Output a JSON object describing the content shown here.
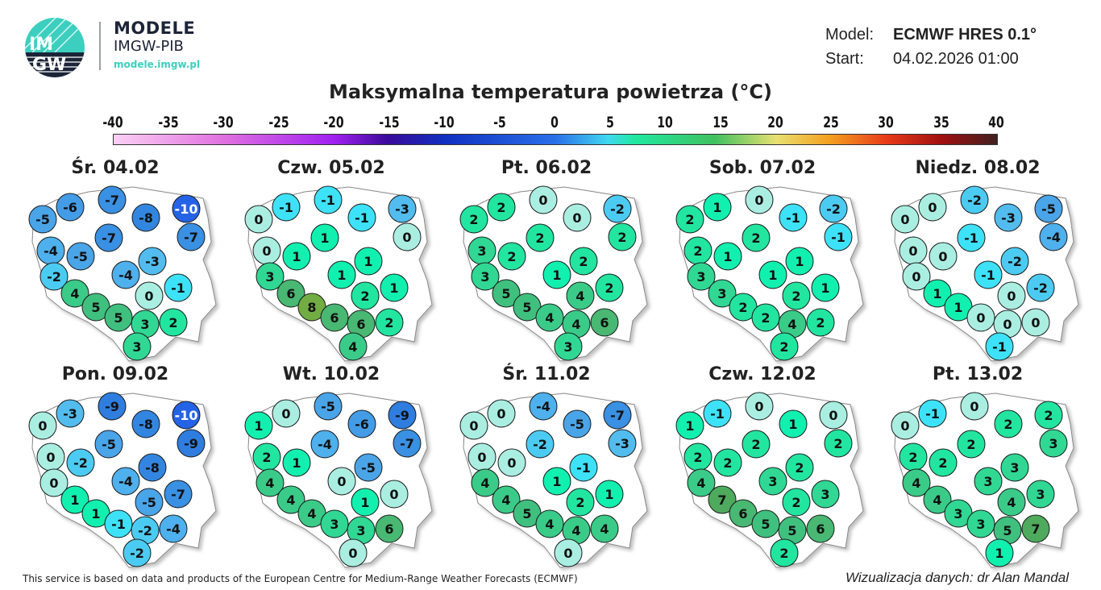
{
  "header": {
    "logo_text": "IMGW",
    "brand_title": "MODELE",
    "brand_subtitle": "IMGW-PIB",
    "brand_url": "modele.imgw.pl",
    "model_label": "Model:",
    "model_value": "ECMWF HRES 0.1°",
    "start_label": "Start:",
    "start_value": "04.02.2026 01:00"
  },
  "title": "Maksymalna temperatura powietrza (°C)",
  "colorbar": {
    "ticks": [
      "-40",
      "-35",
      "-30",
      "-25",
      "-20",
      "-15",
      "-10",
      "-5",
      "0",
      "5",
      "10",
      "15",
      "20",
      "25",
      "30",
      "35",
      "40"
    ],
    "range": [
      -40,
      40
    ]
  },
  "maps": [
    {
      "title": "Śr. 04.02",
      "values": [
        -5,
        -6,
        -7,
        -10,
        -8,
        -7,
        -7,
        -4,
        -5,
        -3,
        -2,
        -4,
        4,
        0,
        -1,
        5,
        5,
        3,
        2,
        3
      ]
    },
    {
      "title": "Czw. 05.02",
      "values": [
        0,
        -1,
        -1,
        -3,
        -1,
        1,
        0,
        0,
        1,
        1,
        3,
        1,
        6,
        2,
        1,
        8,
        6,
        6,
        2,
        4
      ]
    },
    {
      "title": "Pt. 06.02",
      "values": [
        2,
        2,
        0,
        -2,
        0,
        2,
        2,
        3,
        2,
        2,
        3,
        1,
        5,
        4,
        2,
        5,
        4,
        4,
        6,
        3
      ]
    },
    {
      "title": "Sob. 07.02",
      "values": [
        2,
        1,
        0,
        -2,
        -1,
        2,
        -1,
        2,
        1,
        1,
        3,
        1,
        3,
        2,
        1,
        2,
        2,
        4,
        2,
        2
      ]
    },
    {
      "title": "Niedz. 08.02",
      "values": [
        0,
        0,
        -2,
        -5,
        -3,
        -1,
        -4,
        0,
        0,
        -2,
        0,
        -1,
        1,
        0,
        -2,
        1,
        0,
        0,
        0,
        -1
      ]
    },
    {
      "title": "Pon. 09.02",
      "values": [
        0,
        -3,
        -9,
        -10,
        -8,
        -5,
        -9,
        0,
        -2,
        -8,
        0,
        -4,
        1,
        -5,
        -7,
        1,
        -1,
        -2,
        -4,
        -2
      ]
    },
    {
      "title": "Wt. 10.02",
      "values": [
        1,
        0,
        -5,
        -9,
        -6,
        -4,
        -7,
        2,
        1,
        -5,
        4,
        0,
        4,
        1,
        0,
        4,
        3,
        3,
        6,
        0
      ]
    },
    {
      "title": "Śr. 11.02",
      "values": [
        0,
        0,
        -4,
        -7,
        -5,
        -2,
        -3,
        0,
        0,
        -1,
        4,
        1,
        4,
        2,
        1,
        5,
        4,
        4,
        4,
        0
      ]
    },
    {
      "title": "Czw. 12.02",
      "values": [
        1,
        -1,
        0,
        0,
        1,
        2,
        2,
        2,
        2,
        2,
        4,
        3,
        7,
        2,
        3,
        6,
        5,
        5,
        6,
        2
      ]
    },
    {
      "title": "Pt. 13.02",
      "values": [
        0,
        -1,
        0,
        2,
        2,
        2,
        3,
        2,
        2,
        3,
        4,
        3,
        4,
        4,
        3,
        3,
        3,
        5,
        7,
        1
      ]
    }
  ],
  "footer": {
    "attribution": "This service is based on data and products of the European Centre for Medium-Range Weather Forecasts (ECMWF)",
    "credit": "Wizualizacja danych: dr Alan Mandal"
  },
  "colors": {
    "logo_teal": "#3ccfbf",
    "logo_navy": "#1c2438"
  }
}
